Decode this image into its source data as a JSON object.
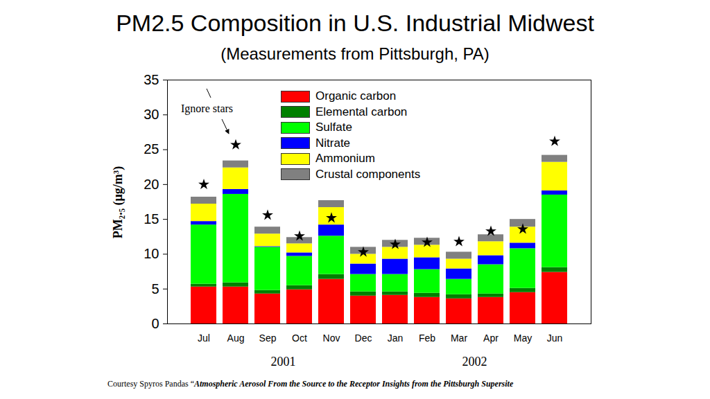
{
  "chart_data": {
    "type": "bar",
    "stacked": true,
    "title": "PM2.5 Composition in U.S. Industrial Midwest",
    "subtitle": "(Measurements from Pittsburgh, PA)",
    "y_label": "PM₂.₅ (μg/m³)",
    "categories": [
      "Jul",
      "Aug",
      "Sep",
      "Oct",
      "Nov",
      "Dec",
      "Jan",
      "Feb",
      "Mar",
      "Apr",
      "May",
      "Jun"
    ],
    "x_groups": [
      {
        "label": "2001",
        "categories": [
          "Jul",
          "Aug",
          "Sep",
          "Oct",
          "Nov",
          "Dec"
        ]
      },
      {
        "label": "2002",
        "categories": [
          "Jan",
          "Feb",
          "Mar",
          "Apr",
          "May",
          "Jun"
        ]
      }
    ],
    "series": [
      {
        "name": "Organic carbon",
        "color": "#ff0000",
        "values": [
          5.3,
          5.3,
          4.3,
          4.9,
          6.4,
          4.0,
          4.1,
          3.8,
          3.6,
          3.8,
          4.5,
          7.4
        ]
      },
      {
        "name": "Elemental carbon",
        "color": "#008000",
        "values": [
          0.4,
          0.6,
          0.5,
          0.6,
          0.7,
          0.6,
          0.5,
          0.6,
          0.6,
          0.5,
          0.6,
          0.7
        ]
      },
      {
        "name": "Sulfate",
        "color": "#00ff00",
        "values": [
          8.5,
          12.7,
          6.2,
          4.2,
          5.5,
          2.5,
          2.5,
          3.4,
          2.2,
          4.2,
          5.7,
          10.4
        ]
      },
      {
        "name": "Nitrate",
        "color": "#0000ff",
        "values": [
          0.5,
          0.7,
          0.1,
          0.5,
          1.6,
          1.5,
          2.2,
          1.7,
          1.5,
          1.3,
          0.8,
          0.6
        ]
      },
      {
        "name": "Ammonium",
        "color": "#ffff00",
        "values": [
          2.5,
          3.1,
          1.8,
          1.3,
          2.5,
          1.4,
          1.7,
          1.8,
          1.4,
          2.0,
          2.3,
          4.1
        ]
      },
      {
        "name": "Crustal components",
        "color": "#808080",
        "values": [
          1.0,
          1.0,
          1.0,
          0.9,
          1.0,
          1.0,
          1.0,
          1.0,
          1.0,
          1.0,
          1.1,
          1.0
        ]
      }
    ],
    "annotation": {
      "text": "Ignore stars",
      "marker": "star",
      "color": "#000000",
      "values": [
        20.0,
        25.7,
        15.6,
        12.6,
        15.2,
        10.3,
        11.4,
        11.7,
        11.8,
        13.3,
        13.6,
        26.2
      ]
    },
    "ylim": [
      0,
      35
    ],
    "yticks": [
      0,
      5,
      10,
      15,
      20,
      25,
      30,
      35
    ],
    "grid": false,
    "legend": "top",
    "caption": [
      "Courtesy Spyros Pandas “",
      "Atmospheric Aerosol From the Source to the Receptor Insights from the Pittsburgh Supersite"
    ]
  }
}
